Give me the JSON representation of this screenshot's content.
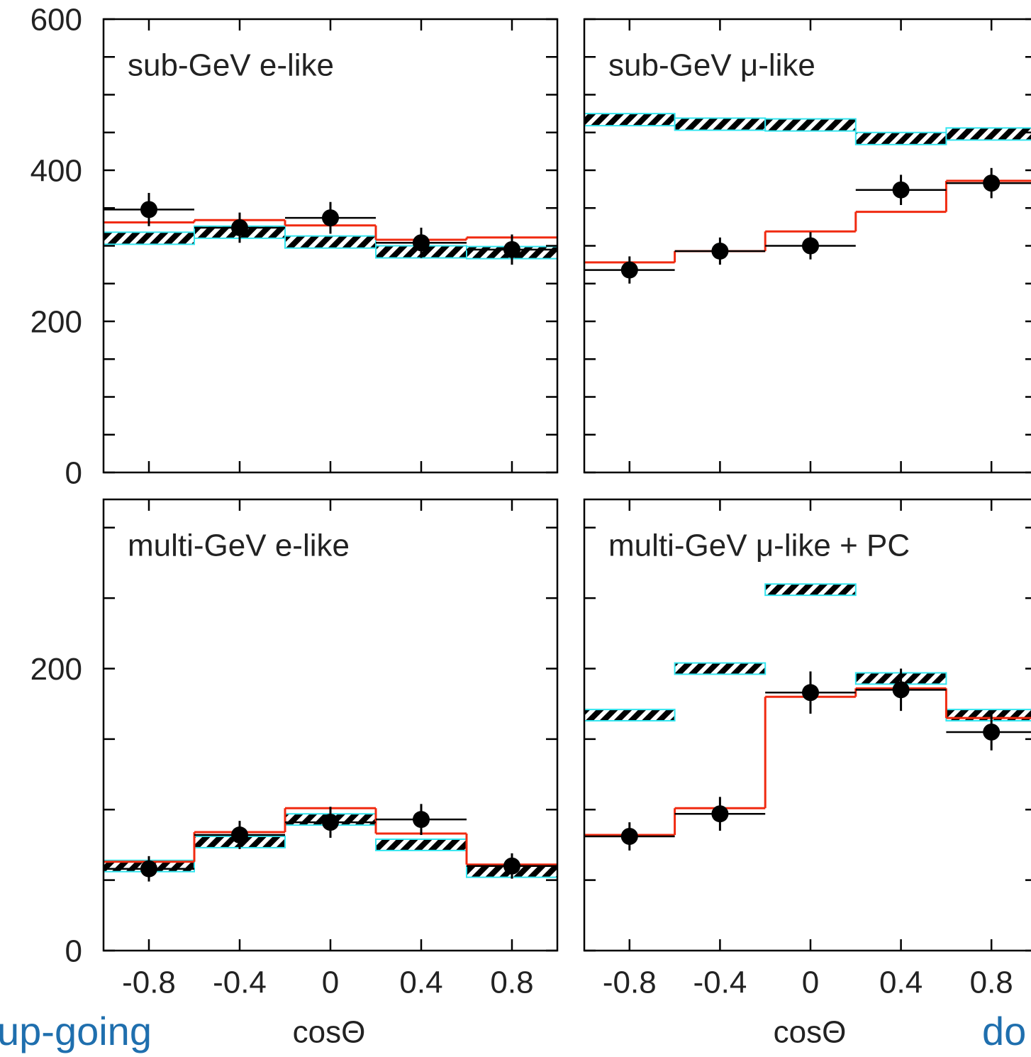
{
  "chart_data": [
    {
      "type": "histogram",
      "title": "sub-GeV e-like",
      "bins": [
        -1,
        -0.6,
        -0.2,
        0.2,
        0.6,
        1
      ],
      "xlim": [
        -1,
        1
      ],
      "xticks": [
        -0.8,
        -0.4,
        0,
        0.4,
        0.8
      ],
      "show_xticklabels": false,
      "ylim": [
        0,
        600
      ],
      "yticks": [
        0,
        200,
        400,
        600
      ],
      "minor_yticks": [
        50,
        100,
        150,
        250,
        300,
        350,
        450,
        500,
        550
      ],
      "show_yticklabels": true,
      "series": [
        {
          "style": "band",
          "color": "#33e5ef",
          "values": [
            310,
            318,
            305,
            292,
            291
          ],
          "errors": [
            8,
            8,
            8,
            8,
            8
          ]
        },
        {
          "style": "step",
          "color": "#f02a10",
          "values": [
            331,
            334,
            327,
            308,
            311
          ]
        },
        {
          "style": "points",
          "color": "#000000",
          "values": [
            348,
            324,
            337,
            304,
            295
          ],
          "errors": [
            22,
            20,
            21,
            20,
            20
          ]
        }
      ]
    },
    {
      "type": "histogram",
      "title": "sub-GeV μ-like",
      "bins": [
        -1,
        -0.6,
        -0.2,
        0.2,
        0.6,
        1
      ],
      "xlim": [
        -1,
        1
      ],
      "xticks": [
        -0.8,
        -0.4,
        0,
        0.4,
        0.8
      ],
      "show_xticklabels": false,
      "ylim": [
        0,
        600
      ],
      "yticks": [
        0,
        200,
        400,
        600
      ],
      "minor_yticks": [
        50,
        100,
        150,
        250,
        300,
        350,
        450,
        500,
        550
      ],
      "show_yticklabels": false,
      "series": [
        {
          "style": "band",
          "color": "#33e5ef",
          "values": [
            467,
            461,
            460,
            442,
            448
          ],
          "errors": [
            8,
            8,
            8,
            8,
            8
          ]
        },
        {
          "style": "step",
          "color": "#f02a10",
          "values": [
            278,
            293,
            319,
            345,
            386
          ]
        },
        {
          "style": "points",
          "color": "#000000",
          "values": [
            268,
            293,
            300,
            374,
            383
          ],
          "errors": [
            18,
            18,
            18,
            20,
            20
          ]
        }
      ]
    },
    {
      "type": "histogram",
      "title": "multi-GeV e-like",
      "bins": [
        -1,
        -0.6,
        -0.2,
        0.2,
        0.6,
        1
      ],
      "xlim": [
        -1,
        1
      ],
      "xticks": [
        -0.8,
        -0.4,
        0,
        0.4,
        0.8
      ],
      "show_xticklabels": true,
      "xlabel": "cosΘ",
      "ylim": [
        0,
        320
      ],
      "yticks": [
        0,
        200
      ],
      "minor_yticks": [
        50,
        100,
        150,
        250,
        300
      ],
      "show_yticklabels": true,
      "series": [
        {
          "style": "band",
          "color": "#33e5ef",
          "values": [
            60,
            77,
            93,
            75,
            56
          ],
          "errors": [
            4,
            4,
            4,
            4,
            4
          ]
        },
        {
          "style": "step",
          "color": "#f02a10",
          "values": [
            63,
            84,
            101,
            83,
            61
          ]
        },
        {
          "style": "points",
          "color": "#000000",
          "values": [
            58,
            82,
            91,
            93,
            60
          ],
          "errors": [
            9,
            10,
            11,
            11,
            9
          ]
        }
      ]
    },
    {
      "type": "histogram",
      "title": "multi-GeV μ-like + PC",
      "bins": [
        -1,
        -0.6,
        -0.2,
        0.2,
        0.6,
        1
      ],
      "xlim": [
        -1,
        1
      ],
      "xticks": [
        -0.8,
        -0.4,
        0,
        0.4,
        0.8
      ],
      "show_xticklabels": true,
      "xlabel": "cosΘ",
      "ylim": [
        0,
        320
      ],
      "yticks": [
        0,
        200
      ],
      "minor_yticks": [
        50,
        100,
        150,
        250,
        300
      ],
      "show_yticklabels": false,
      "series": [
        {
          "style": "band",
          "color": "#33e5ef",
          "values": [
            167,
            200,
            256,
            193,
            167
          ],
          "errors": [
            4,
            4,
            4,
            4,
            4
          ]
        },
        {
          "style": "step",
          "color": "#f02a10",
          "values": [
            82,
            101,
            180,
            186,
            165
          ]
        },
        {
          "style": "points",
          "color": "#000000",
          "values": [
            81,
            97,
            183,
            185,
            155
          ],
          "errors": [
            10,
            12,
            15,
            15,
            13
          ]
        }
      ]
    }
  ],
  "annotations": {
    "color": "#1f6fae",
    "left": "up-going",
    "right": "do"
  }
}
